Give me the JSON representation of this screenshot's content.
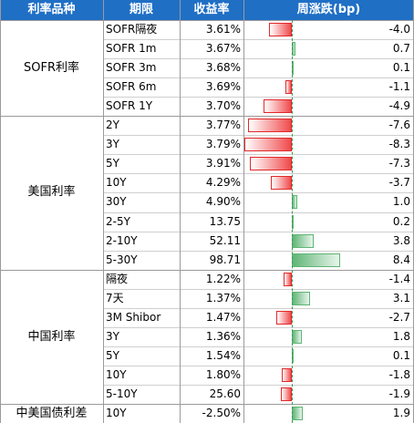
{
  "header": [
    "利率品种",
    "期限",
    "收益率",
    "周涨跌(bp)"
  ],
  "groups": [
    {
      "name": "SOFR利率",
      "rows": [
        {
          "term": "SOFR隔夜",
          "yield": "3.61%",
          "change": -4.0,
          "change_label": "-4.0"
        },
        {
          "term": "SOFR 1m",
          "yield": "3.67%",
          "change": 0.7,
          "change_label": "0.7"
        },
        {
          "term": "SOFR 3m",
          "yield": "3.68%",
          "change": 0.1,
          "change_label": "0.1"
        },
        {
          "term": "SOFR 6m",
          "yield": "3.69%",
          "change": -1.1,
          "change_label": "-1.1"
        },
        {
          "term": "SOFR 1Y",
          "yield": "3.70%",
          "change": -4.9,
          "change_label": "-4.9"
        }
      ]
    },
    {
      "name": "美国利率",
      "rows": [
        {
          "term": "2Y",
          "yield": "3.77%",
          "change": -7.6,
          "change_label": "-7.6"
        },
        {
          "term": "3Y",
          "yield": "3.79%",
          "change": -8.3,
          "change_label": "-8.3"
        },
        {
          "term": "5Y",
          "yield": "3.91%",
          "change": -7.3,
          "change_label": "-7.3"
        },
        {
          "term": "10Y",
          "yield": "4.29%",
          "change": -3.7,
          "change_label": "-3.7"
        },
        {
          "term": "30Y",
          "yield": "4.90%",
          "change": 1.0,
          "change_label": "1.0"
        },
        {
          "term": "2-5Y",
          "yield": "13.75",
          "change": 0.2,
          "change_label": "0.2"
        },
        {
          "term": "2-10Y",
          "yield": "52.11",
          "change": 3.8,
          "change_label": "3.8"
        },
        {
          "term": "5-30Y",
          "yield": "98.71",
          "change": 8.4,
          "change_label": "8.4"
        }
      ]
    },
    {
      "name": "中国利率",
      "rows": [
        {
          "term": "隔夜",
          "yield": "1.22%",
          "change": -1.4,
          "change_label": "-1.4"
        },
        {
          "term": "7天",
          "yield": "1.37%",
          "change": 3.1,
          "change_label": "3.1"
        },
        {
          "term": "3M Shibor",
          "yield": "1.47%",
          "change": -2.7,
          "change_label": "-2.7"
        },
        {
          "term": "3Y",
          "yield": "1.36%",
          "change": 1.8,
          "change_label": "1.8"
        },
        {
          "term": "5Y",
          "yield": "1.54%",
          "change": 0.1,
          "change_label": "0.1"
        },
        {
          "term": "10Y",
          "yield": "1.80%",
          "change": -1.8,
          "change_label": "-1.8"
        },
        {
          "term": "5-10Y",
          "yield": "25.60",
          "change": -1.9,
          "change_label": "-1.9"
        }
      ]
    },
    {
      "name": "中美国债利差",
      "rows": [
        {
          "term": "10Y",
          "yield": "-2.50%",
          "change": 1.9,
          "change_label": "1.9"
        }
      ]
    }
  ]
}
